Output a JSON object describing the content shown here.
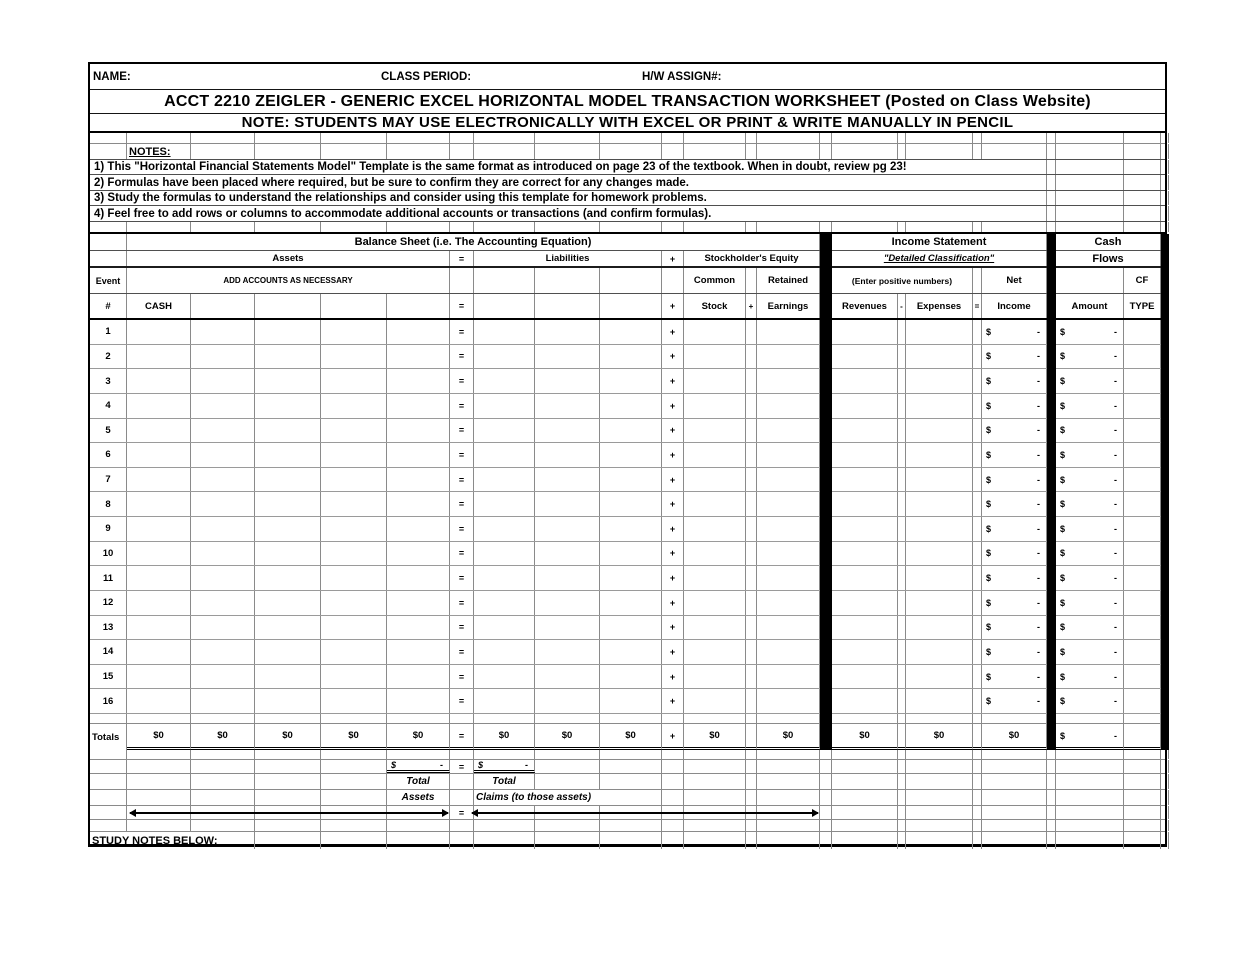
{
  "header": {
    "name_label": "NAME:",
    "class_period_label": "CLASS PERIOD:",
    "hw_assign_label": "H/W ASSIGN#:",
    "title": "ACCT 2210 ZEIGLER - GENERIC EXCEL HORIZONTAL MODEL TRANSACTION WORKSHEET (Posted on Class Website)",
    "subtitle": "NOTE: STUDENTS MAY USE ELECTRONICALLY WITH EXCEL OR PRINT & WRITE MANUALLY IN PENCIL"
  },
  "notes": {
    "heading": "NOTES:",
    "items": [
      "1) This \"Horizontal Financial Statements Model\" Template is the same format as introduced on page 23 of the textbook. When in doubt, review pg 23!",
      "2) Formulas have been placed where required, but be sure to confirm they are correct for any changes made.",
      "3) Study the formulas to understand the relationships and consider using this template for homework problems.",
      "4) Feel free to add rows or columns to accommodate additional accounts or transactions (and confirm formulas)."
    ]
  },
  "sections": {
    "balance_sheet_title": "Balance Sheet (i.e. The Accounting Equation)",
    "assets_label": "Assets",
    "liabilities_label": "Liabilities",
    "stockholders_equity_label": "Stockholder's Equity",
    "income_statement_title": "Income Statement",
    "detailed_classification_label": "\"Detailed Classification\"",
    "cash_title": "Cash",
    "flows_label": "Flows"
  },
  "column_headers": {
    "event": "Event",
    "row_hash": "#",
    "cash": "CASH",
    "add_accounts_note": "ADD ACCOUNTS AS NECESSARY",
    "common": "Common",
    "stock": "Stock",
    "retained": "Retained",
    "earnings": "Earnings",
    "enter_positive_note": "(Enter positive numbers)",
    "revenues": "Revenues",
    "expenses": "Expenses",
    "net": "Net",
    "income": "Income",
    "amount": "Amount",
    "cf": "CF",
    "type": "TYPE"
  },
  "symbols": {
    "equals": "=",
    "plus": "+",
    "minus": "-",
    "dollar": "$",
    "dash": "-"
  },
  "rows": {
    "numbers": [
      "1",
      "2",
      "3",
      "4",
      "5",
      "6",
      "7",
      "8",
      "9",
      "10",
      "11",
      "12",
      "13",
      "14",
      "15",
      "16"
    ]
  },
  "totals": {
    "label": "Totals",
    "asset_values": [
      "$0",
      "$0",
      "$0",
      "$0",
      "$0"
    ],
    "liability_values": [
      "$0",
      "$0",
      "$0"
    ],
    "common_stock": "$0",
    "retained_earnings": "$0",
    "revenues": "$0",
    "expenses": "$0",
    "net_income": "$0"
  },
  "footer": {
    "total_assets_line1": "Total",
    "total_assets_line2": "Assets",
    "total_claims_line1": "Total",
    "total_claims_line2": "Claims (to those assets)",
    "study_notes_label": "STUDY NOTES BELOW:"
  }
}
